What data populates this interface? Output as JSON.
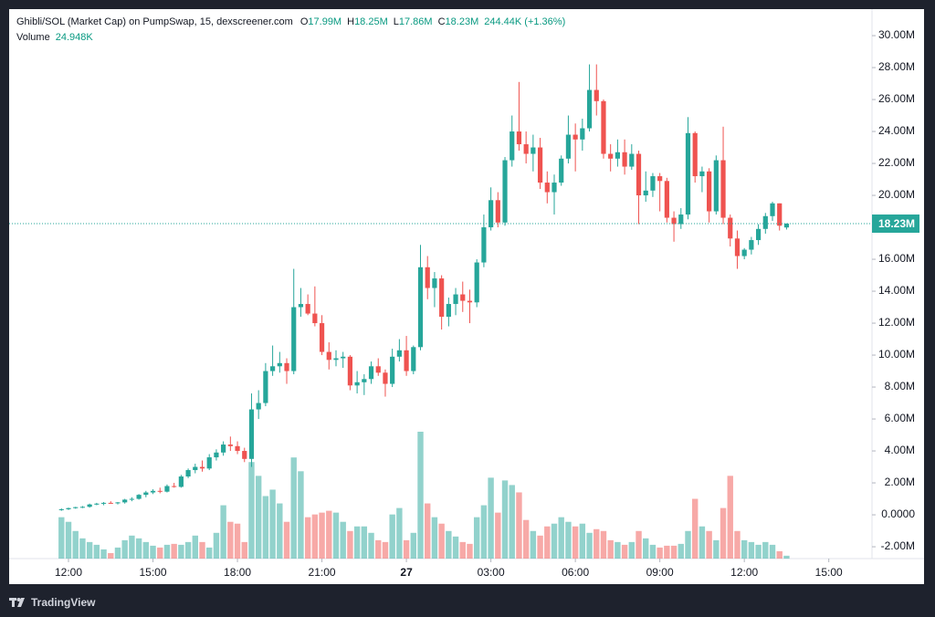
{
  "chart_data": {
    "type": "candlestick",
    "title": "Ghibli/SOL (Market Cap) on PumpSwap, 15, dexscreener.com",
    "ohlc_header": [
      {
        "label": "O",
        "value": "17.99M"
      },
      {
        "label": "H",
        "value": "18.25M"
      },
      {
        "label": "L",
        "value": "17.86M"
      },
      {
        "label": "C",
        "value": "18.23M"
      }
    ],
    "change": "244.44K (+1.36%)",
    "volume_name": "Volume",
    "volume_label": "24.948K",
    "last_price": {
      "value": 18.23,
      "label": "18.23M"
    },
    "up_color": "#26a69a",
    "down_color": "#ef5350",
    "ylim": [
      -2.74,
      31.66
    ],
    "yticks": [
      {
        "value": 30,
        "label": "30.00M"
      },
      {
        "value": 28,
        "label": "28.00M"
      },
      {
        "value": 26,
        "label": "26.00M"
      },
      {
        "value": 24,
        "label": "24.00M"
      },
      {
        "value": 22,
        "label": "22.00M"
      },
      {
        "value": 20,
        "label": "20.00M"
      },
      {
        "value": 18,
        "label": "18.00M"
      },
      {
        "value": 16,
        "label": "16.00M"
      },
      {
        "value": 14,
        "label": "14.00M"
      },
      {
        "value": 12,
        "label": "12.00M"
      },
      {
        "value": 10,
        "label": "10.00M"
      },
      {
        "value": 8,
        "label": "8.00M"
      },
      {
        "value": 6,
        "label": "6.00M"
      },
      {
        "value": 4,
        "label": "4.00M"
      },
      {
        "value": 2,
        "label": "2.00M"
      },
      {
        "value": 0,
        "label": "0.0000"
      },
      {
        "value": -2,
        "label": "-2.00M"
      }
    ],
    "xticks": [
      {
        "value": 1,
        "label": "12:00"
      },
      {
        "value": 13,
        "label": "15:00"
      },
      {
        "value": 25,
        "label": "18:00"
      },
      {
        "value": 37,
        "label": "21:00"
      },
      {
        "value": 49,
        "label": "27"
      },
      {
        "value": 61,
        "label": "03:00"
      },
      {
        "value": 73,
        "label": "06:00"
      },
      {
        "value": 85,
        "label": "09:00"
      },
      {
        "value": 97,
        "label": "12:00"
      },
      {
        "value": 109,
        "label": "15:00"
      }
    ],
    "ohlc": [
      [
        0.3,
        0.4,
        0.25,
        0.35
      ],
      [
        0.35,
        0.45,
        0.3,
        0.42
      ],
      [
        0.42,
        0.5,
        0.38,
        0.48
      ],
      [
        0.48,
        0.55,
        0.42,
        0.5
      ],
      [
        0.5,
        0.7,
        0.45,
        0.65
      ],
      [
        0.65,
        0.75,
        0.6,
        0.7
      ],
      [
        0.7,
        0.8,
        0.6,
        0.75
      ],
      [
        0.75,
        0.85,
        0.7,
        0.72
      ],
      [
        0.72,
        0.8,
        0.65,
        0.78
      ],
      [
        0.78,
        1.0,
        0.7,
        0.95
      ],
      [
        0.95,
        1.1,
        0.85,
        1.0
      ],
      [
        1.0,
        1.3,
        0.95,
        1.25
      ],
      [
        1.25,
        1.5,
        1.1,
        1.4
      ],
      [
        1.4,
        1.6,
        1.3,
        1.5
      ],
      [
        1.5,
        1.7,
        1.35,
        1.45
      ],
      [
        1.45,
        1.9,
        1.4,
        1.8
      ],
      [
        1.8,
        2.0,
        1.7,
        1.75
      ],
      [
        1.75,
        2.5,
        1.7,
        2.4
      ],
      [
        2.4,
        2.9,
        2.3,
        2.8
      ],
      [
        2.8,
        3.2,
        2.6,
        3.0
      ],
      [
        3.0,
        3.4,
        2.7,
        2.9
      ],
      [
        2.9,
        3.8,
        2.8,
        3.6
      ],
      [
        3.6,
        4.1,
        3.4,
        3.9
      ],
      [
        3.9,
        4.6,
        3.7,
        4.4
      ],
      [
        4.4,
        4.9,
        4.0,
        4.3
      ],
      [
        4.3,
        4.6,
        3.8,
        4.0
      ],
      [
        4.0,
        4.2,
        3.3,
        3.5
      ],
      [
        3.5,
        7.6,
        3.0,
        6.6
      ],
      [
        6.6,
        7.8,
        6.0,
        7.0
      ],
      [
        7.0,
        9.5,
        6.8,
        9.0
      ],
      [
        9.0,
        10.6,
        8.7,
        9.3
      ],
      [
        9.3,
        10.2,
        8.9,
        9.5
      ],
      [
        9.5,
        9.8,
        8.2,
        9.0
      ],
      [
        9.0,
        15.4,
        8.8,
        13.0
      ],
      [
        13.0,
        14.2,
        12.4,
        13.2
      ],
      [
        13.2,
        13.8,
        12.5,
        12.6
      ],
      [
        12.6,
        14.3,
        11.8,
        12.0
      ],
      [
        12.0,
        12.5,
        10.0,
        10.2
      ],
      [
        10.2,
        10.8,
        9.1,
        9.7
      ],
      [
        9.7,
        10.3,
        9.3,
        9.8
      ],
      [
        9.8,
        10.2,
        9.2,
        9.9
      ],
      [
        9.9,
        10.0,
        7.8,
        8.1
      ],
      [
        8.1,
        9.0,
        7.6,
        8.3
      ],
      [
        8.3,
        8.8,
        7.5,
        8.5
      ],
      [
        8.5,
        9.6,
        8.2,
        9.3
      ],
      [
        9.3,
        9.8,
        8.7,
        8.9
      ],
      [
        8.9,
        9.1,
        7.4,
        8.2
      ],
      [
        8.2,
        10.4,
        8.0,
        9.9
      ],
      [
        9.9,
        11.0,
        9.6,
        10.3
      ],
      [
        10.3,
        11.2,
        8.7,
        9.0
      ],
      [
        9.0,
        10.6,
        8.8,
        10.5
      ],
      [
        10.5,
        16.9,
        10.3,
        15.5
      ],
      [
        15.5,
        16.2,
        13.5,
        14.2
      ],
      [
        14.2,
        15.2,
        13.0,
        14.8
      ],
      [
        14.8,
        15.0,
        11.6,
        12.4
      ],
      [
        12.4,
        13.6,
        11.8,
        13.2
      ],
      [
        13.2,
        14.2,
        12.5,
        13.8
      ],
      [
        13.8,
        14.6,
        12.7,
        13.4
      ],
      [
        13.4,
        14.1,
        12.0,
        13.3
      ],
      [
        13.3,
        16.0,
        13.0,
        15.8
      ],
      [
        15.8,
        18.8,
        15.5,
        18.0
      ],
      [
        18.0,
        20.5,
        17.8,
        19.7
      ],
      [
        19.7,
        20.2,
        18.0,
        18.3
      ],
      [
        18.3,
        22.4,
        18.1,
        22.2
      ],
      [
        22.2,
        25.0,
        21.8,
        24.0
      ],
      [
        24.0,
        27.1,
        22.8,
        23.2
      ],
      [
        23.2,
        24.0,
        22.0,
        22.6
      ],
      [
        22.6,
        23.8,
        21.5,
        23.0
      ],
      [
        23.0,
        23.6,
        20.4,
        20.8
      ],
      [
        20.8,
        21.5,
        19.5,
        20.2
      ],
      [
        20.2,
        21.3,
        18.8,
        20.8
      ],
      [
        20.8,
        22.5,
        20.6,
        22.3
      ],
      [
        22.3,
        25.0,
        22.0,
        23.8
      ],
      [
        23.8,
        24.5,
        21.5,
        23.5
      ],
      [
        23.5,
        24.8,
        22.8,
        24.2
      ],
      [
        24.2,
        28.2,
        24.0,
        26.6
      ],
      [
        26.6,
        28.2,
        25.0,
        25.9
      ],
      [
        25.9,
        26.0,
        22.3,
        22.6
      ],
      [
        22.6,
        23.2,
        21.5,
        22.3
      ],
      [
        22.3,
        23.5,
        21.8,
        22.7
      ],
      [
        22.7,
        23.5,
        21.3,
        21.8
      ],
      [
        21.8,
        23.2,
        21.6,
        22.6
      ],
      [
        22.6,
        22.8,
        18.2,
        20.0
      ],
      [
        20.0,
        21.5,
        19.6,
        20.3
      ],
      [
        20.3,
        21.4,
        19.9,
        21.2
      ],
      [
        21.2,
        21.4,
        19.0,
        20.9
      ],
      [
        20.9,
        21.1,
        18.3,
        18.6
      ],
      [
        18.6,
        19.0,
        17.1,
        18.2
      ],
      [
        18.2,
        19.2,
        17.9,
        18.8
      ],
      [
        18.8,
        24.9,
        18.5,
        23.9
      ],
      [
        23.9,
        24.0,
        20.8,
        21.2
      ],
      [
        21.2,
        21.8,
        20.2,
        21.5
      ],
      [
        21.5,
        21.7,
        18.3,
        19.0
      ],
      [
        19.0,
        22.5,
        18.8,
        22.2
      ],
      [
        22.2,
        24.3,
        18.2,
        18.6
      ],
      [
        18.6,
        18.8,
        16.8,
        17.3
      ],
      [
        17.3,
        17.8,
        15.4,
        16.2
      ],
      [
        16.2,
        16.7,
        16.0,
        16.6
      ],
      [
        16.6,
        17.4,
        16.3,
        17.2
      ],
      [
        17.2,
        18.2,
        16.9,
        17.9
      ],
      [
        17.9,
        18.9,
        17.6,
        18.7
      ],
      [
        18.7,
        19.6,
        18.4,
        19.5
      ],
      [
        19.5,
        19.5,
        17.8,
        18.1
      ],
      [
        17.99,
        18.25,
        17.86,
        18.23
      ]
    ],
    "volume": [
      360,
      320,
      240,
      176,
      144,
      120,
      80,
      48,
      96,
      160,
      200,
      176,
      144,
      112,
      96,
      120,
      128,
      120,
      144,
      200,
      144,
      96,
      224,
      464,
      320,
      304,
      144,
      840,
      720,
      544,
      600,
      480,
      320,
      880,
      760,
      360,
      384,
      400,
      416,
      400,
      320,
      240,
      280,
      280,
      224,
      160,
      144,
      384,
      440,
      160,
      224,
      1104,
      480,
      360,
      304,
      240,
      192,
      144,
      128,
      360,
      464,
      704,
      400,
      680,
      640,
      576,
      336,
      240,
      200,
      280,
      304,
      360,
      320,
      280,
      304,
      224,
      256,
      240,
      160,
      144,
      120,
      144,
      240,
      176,
      120,
      96,
      112,
      112,
      128,
      240,
      520,
      280,
      240,
      160,
      440,
      720,
      240,
      160,
      144,
      120,
      144,
      120,
      64,
      24.948
    ]
  }
}
